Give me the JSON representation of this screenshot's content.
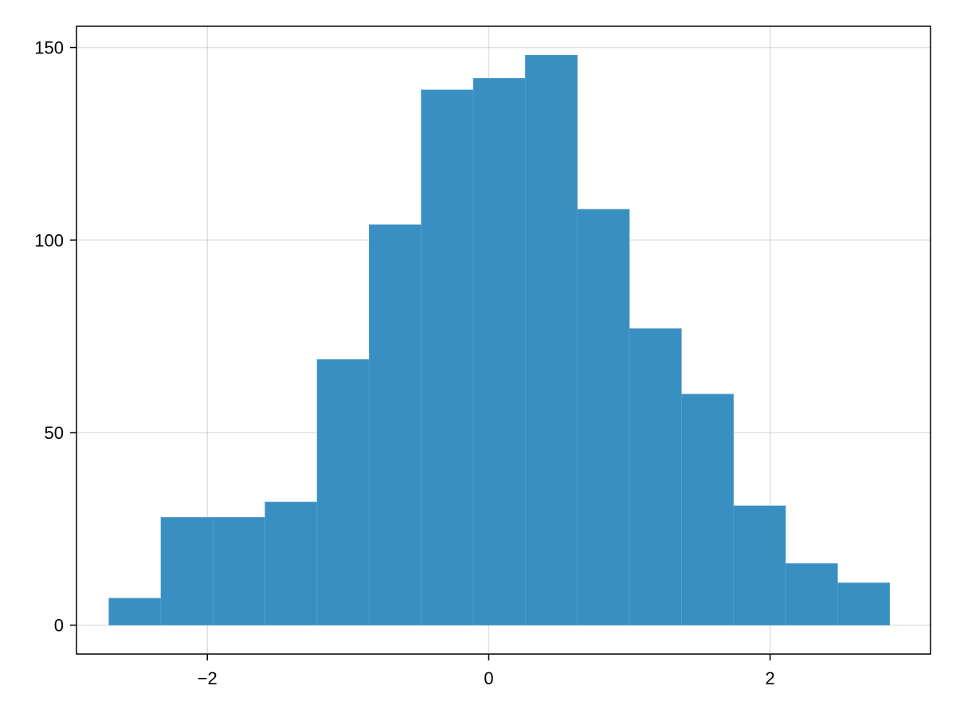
{
  "chart_data": {
    "type": "bar",
    "title": "",
    "xlabel": "",
    "ylabel": "",
    "bin_edges": [
      -2.7,
      -2.33,
      -1.96,
      -1.59,
      -1.22,
      -0.85,
      -0.48,
      -0.11,
      0.26,
      0.63,
      1.0,
      1.37,
      1.74,
      2.11,
      2.48,
      2.85
    ],
    "values": [
      7,
      28,
      28,
      32,
      69,
      104,
      139,
      142,
      148,
      108,
      77,
      60,
      31,
      16,
      11
    ],
    "xlim": [
      -2.93,
      3.14
    ],
    "ylim": [
      -7.5,
      155.5
    ],
    "xticks": [
      -2,
      0,
      2
    ],
    "xtick_labels": [
      "−2",
      "0",
      "2"
    ],
    "yticks": [
      0,
      50,
      100,
      150
    ],
    "ytick_labels": [
      "0",
      "50",
      "100",
      "150"
    ],
    "grid": true,
    "legend": "none",
    "bar_color": "#3a8fc2",
    "bar_edge_color": "#5aa3d0"
  }
}
